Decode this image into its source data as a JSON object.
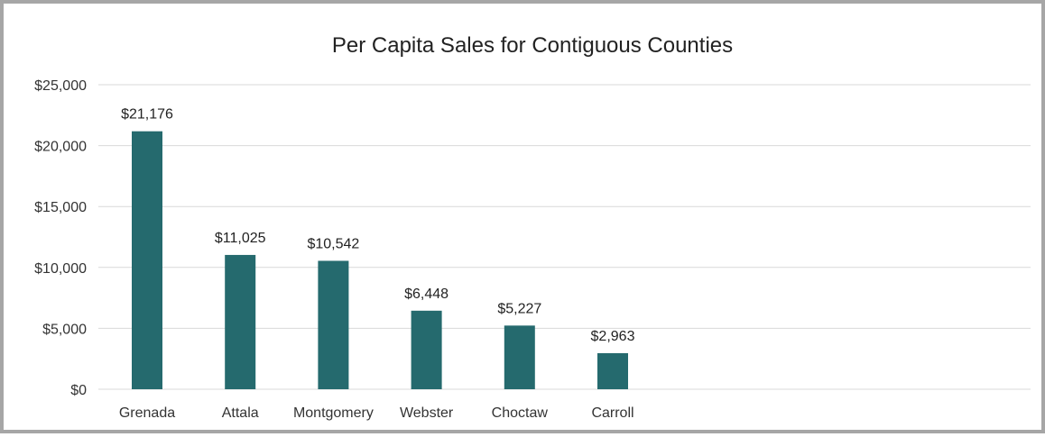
{
  "chart_data": {
    "type": "bar",
    "title": "Per Capita Sales for Contiguous Counties",
    "xlabel": "",
    "ylabel": "",
    "categories": [
      "Grenada",
      "Attala",
      "Montgomery",
      "Webster",
      "Choctaw",
      "Carroll"
    ],
    "values": [
      21176,
      11025,
      10542,
      6448,
      5227,
      2963
    ],
    "data_labels": [
      "$21,176",
      "$11,025",
      "$10,542",
      "$6,448",
      "$5,227",
      "$2,963"
    ],
    "ylim": [
      0,
      25000
    ],
    "yticks": [
      0,
      5000,
      10000,
      15000,
      20000,
      25000
    ],
    "ytick_labels": [
      "$0",
      "$5,000",
      "$10,000",
      "$15,000",
      "$20,000",
      "$25,000"
    ],
    "grid": true,
    "legend": "none",
    "bar_color": "#256a6e"
  }
}
